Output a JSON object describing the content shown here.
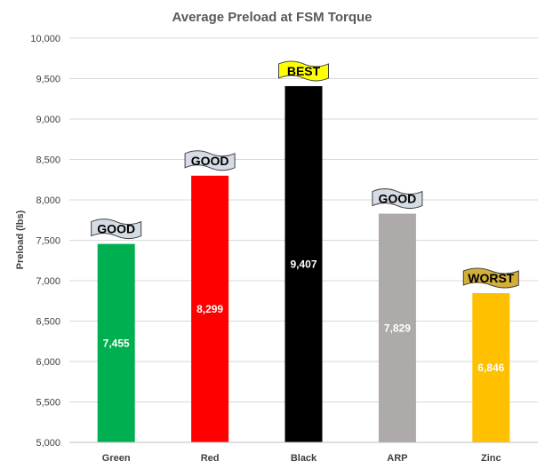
{
  "chart_data": {
    "type": "bar",
    "title": "Average Preload at FSM Torque",
    "xlabel": "",
    "ylabel": "Preload (lbs)",
    "ylim": [
      5000,
      10000
    ],
    "yticks": [
      "5,000",
      "5,500",
      "6,000",
      "6,500",
      "7,000",
      "7,500",
      "8,000",
      "8,500",
      "9,000",
      "9,500",
      "10,000"
    ],
    "grid": true,
    "legend": "none",
    "categories": [
      "Green",
      "Red",
      "Black",
      "ARP",
      "Zinc"
    ],
    "values": [
      7455,
      8299,
      9407,
      7829,
      6846
    ],
    "data_labels": [
      "7,455",
      "8,299",
      "9,407",
      "7,829",
      "6,846"
    ],
    "colors": [
      "#00b050",
      "#ff0000",
      "#000000",
      "#aeaaaa",
      "#ffc000"
    ],
    "annotations": [
      {
        "category": "Green",
        "text": "GOOD",
        "color": "#d6dce5"
      },
      {
        "category": "Red",
        "text": "GOOD",
        "color": "#d6dce5"
      },
      {
        "category": "Black",
        "text": "BEST",
        "color": "#ffff00"
      },
      {
        "category": "ARP",
        "text": "GOOD",
        "color": "#d6dce5"
      },
      {
        "category": "Zinc",
        "text": "WORST",
        "color": "#d4af37"
      }
    ]
  }
}
